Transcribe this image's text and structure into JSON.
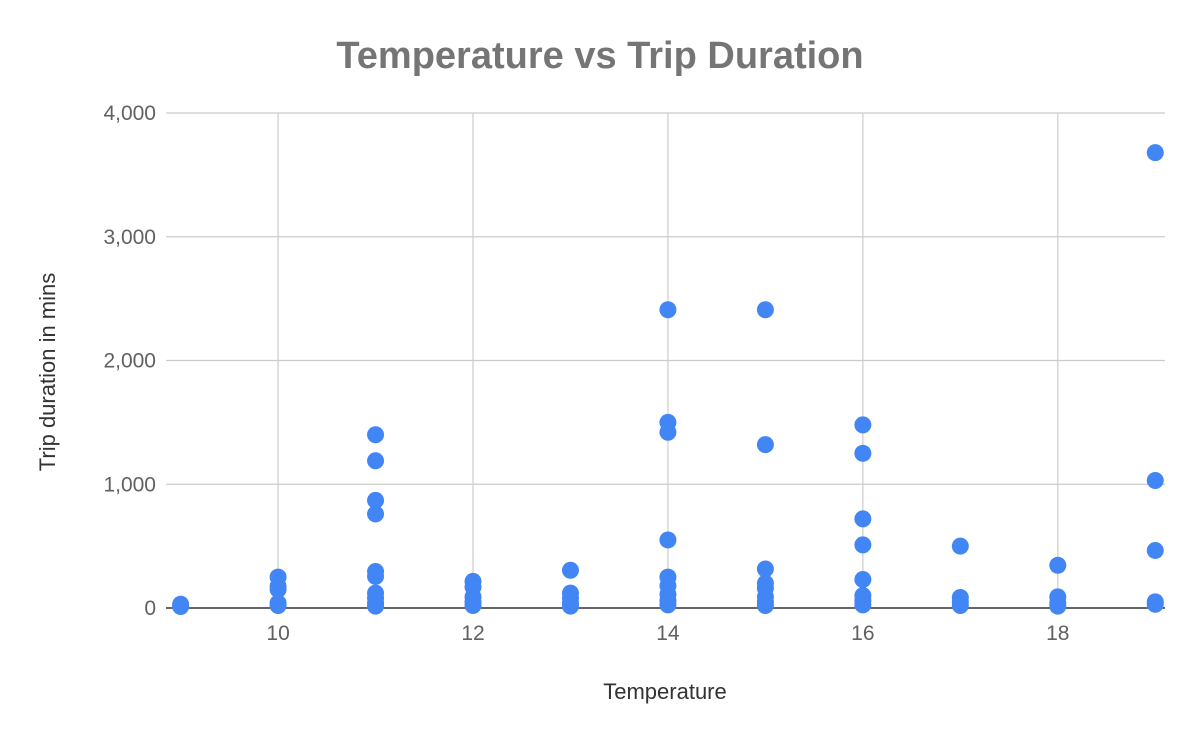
{
  "chart_data": {
    "type": "scatter",
    "title": "Temperature vs Trip Duration",
    "xlabel": "Temperature",
    "ylabel": "Trip duration in mins",
    "xlim": [
      8.85,
      19.1
    ],
    "ylim": [
      0,
      4000
    ],
    "xticks": [
      10,
      12,
      14,
      16,
      18
    ],
    "xtick_labels": [
      "10",
      "12",
      "14",
      "16",
      "18"
    ],
    "yticks": [
      0,
      1000,
      2000,
      3000,
      4000
    ],
    "ytick_labels": [
      "0",
      "1,000",
      "2,000",
      "3,000",
      "4,000"
    ],
    "grid": true,
    "legend": "none",
    "marker_color": "#4285f4",
    "points": [
      {
        "x": 9,
        "y": 30
      },
      {
        "x": 9,
        "y": 12
      },
      {
        "x": 10,
        "y": 250
      },
      {
        "x": 10,
        "y": 175
      },
      {
        "x": 10,
        "y": 150
      },
      {
        "x": 10,
        "y": 40
      },
      {
        "x": 10,
        "y": 20
      },
      {
        "x": 11,
        "y": 1400
      },
      {
        "x": 11,
        "y": 1190
      },
      {
        "x": 11,
        "y": 870
      },
      {
        "x": 11,
        "y": 760
      },
      {
        "x": 11,
        "y": 295
      },
      {
        "x": 11,
        "y": 255
      },
      {
        "x": 11,
        "y": 120
      },
      {
        "x": 11,
        "y": 80
      },
      {
        "x": 11,
        "y": 40
      },
      {
        "x": 11,
        "y": 15
      },
      {
        "x": 12,
        "y": 215
      },
      {
        "x": 12,
        "y": 170
      },
      {
        "x": 12,
        "y": 90
      },
      {
        "x": 12,
        "y": 50
      },
      {
        "x": 12,
        "y": 20
      },
      {
        "x": 13,
        "y": 305
      },
      {
        "x": 13,
        "y": 120
      },
      {
        "x": 13,
        "y": 80
      },
      {
        "x": 13,
        "y": 40
      },
      {
        "x": 13,
        "y": 15
      },
      {
        "x": 14,
        "y": 2410
      },
      {
        "x": 14,
        "y": 1500
      },
      {
        "x": 14,
        "y": 1420
      },
      {
        "x": 14,
        "y": 550
      },
      {
        "x": 14,
        "y": 250
      },
      {
        "x": 14,
        "y": 180
      },
      {
        "x": 14,
        "y": 110
      },
      {
        "x": 14,
        "y": 60
      },
      {
        "x": 14,
        "y": 25
      },
      {
        "x": 15,
        "y": 2410
      },
      {
        "x": 15,
        "y": 1320
      },
      {
        "x": 15,
        "y": 315
      },
      {
        "x": 15,
        "y": 200
      },
      {
        "x": 15,
        "y": 160
      },
      {
        "x": 15,
        "y": 90
      },
      {
        "x": 15,
        "y": 50
      },
      {
        "x": 15,
        "y": 20
      },
      {
        "x": 16,
        "y": 1480
      },
      {
        "x": 16,
        "y": 1250
      },
      {
        "x": 16,
        "y": 720
      },
      {
        "x": 16,
        "y": 510
      },
      {
        "x": 16,
        "y": 230
      },
      {
        "x": 16,
        "y": 100
      },
      {
        "x": 16,
        "y": 60
      },
      {
        "x": 16,
        "y": 25
      },
      {
        "x": 17,
        "y": 500
      },
      {
        "x": 17,
        "y": 85
      },
      {
        "x": 17,
        "y": 50
      },
      {
        "x": 17,
        "y": 20
      },
      {
        "x": 18,
        "y": 345
      },
      {
        "x": 18,
        "y": 90
      },
      {
        "x": 18,
        "y": 40
      },
      {
        "x": 18,
        "y": 15
      },
      {
        "x": 19,
        "y": 3680
      },
      {
        "x": 19,
        "y": 1030
      },
      {
        "x": 19,
        "y": 465
      },
      {
        "x": 19,
        "y": 50
      },
      {
        "x": 19,
        "y": 30
      }
    ]
  }
}
